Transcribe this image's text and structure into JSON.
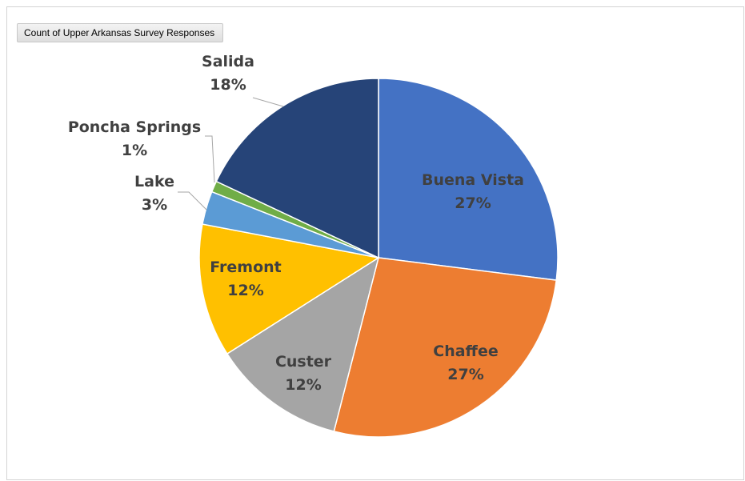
{
  "header": {
    "field_button_label": "Count of Upper Arkansas Survey Responses"
  },
  "chart_data": {
    "type": "pie",
    "start_angle_deg": 0,
    "direction": "clockwise",
    "legend": "none",
    "slices": [
      {
        "category": "Buena Vista",
        "label": "27%",
        "value": 27,
        "color": "#4472C4",
        "text_color": "#404040"
      },
      {
        "category": "Chaffee",
        "label": "27%",
        "value": 27,
        "color": "#ED7D31",
        "text_color": "#404040"
      },
      {
        "category": "Custer",
        "label": "12%",
        "value": 12,
        "color": "#A5A5A5",
        "text_color": "#404040"
      },
      {
        "category": "Fremont",
        "label": "12%",
        "value": 12,
        "color": "#FFC000",
        "text_color": "#404040"
      },
      {
        "category": "Lake",
        "label": "3%",
        "value": 3,
        "color": "#5B9BD5",
        "text_color": "#404040"
      },
      {
        "category": "Poncha Springs",
        "label": "1%",
        "value": 1,
        "color": "#70AD47",
        "text_color": "#404040"
      },
      {
        "category": "Salida",
        "label": "18%",
        "value": 18,
        "color": "#264478",
        "text_color": "#404040"
      }
    ]
  }
}
